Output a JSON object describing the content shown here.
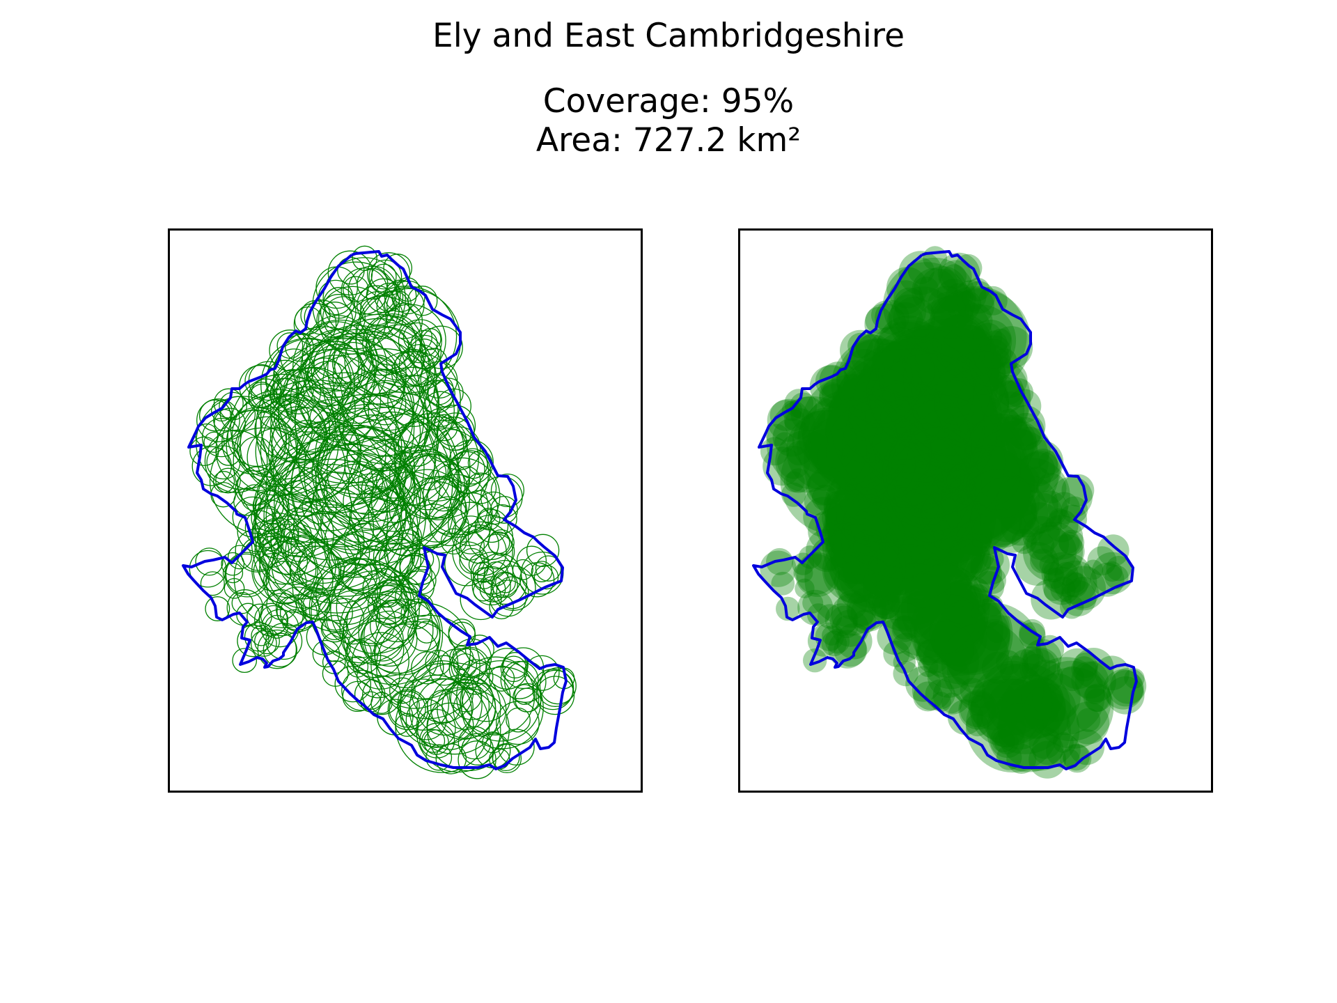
{
  "title": "Ely and East Cambridgeshire",
  "coverage_text": "Coverage: 95%",
  "area_text": "Area: 727.2 km²",
  "colors": {
    "boundary": "#0000dd",
    "circle": "#008000",
    "frame": "#000000",
    "background": "#ffffff"
  },
  "panels": [
    {
      "style": "circle-outlines"
    },
    {
      "style": "filled-circles"
    }
  ]
}
